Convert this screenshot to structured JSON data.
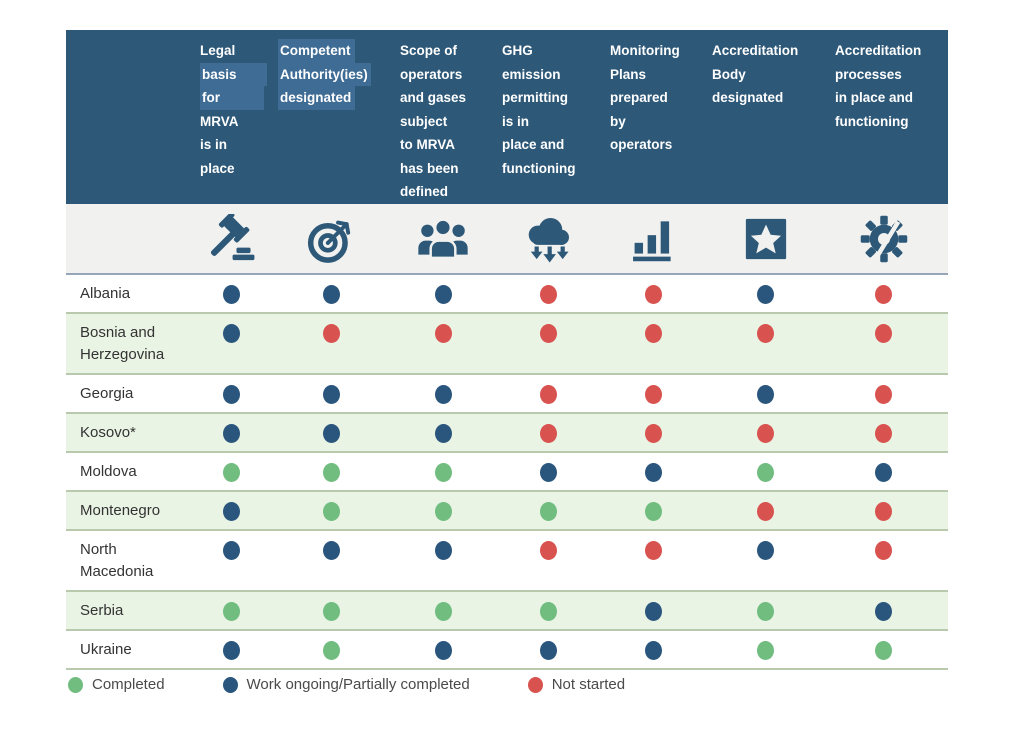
{
  "theme": {
    "header_bg": "#2d5878",
    "header_text": "#ffffff",
    "selection_highlight": "#3f6c95",
    "icon_band_bg": "#f1f1ef",
    "icon_color": "#2d5878",
    "row_alt_bg": "#eaf4e5",
    "row_separator": "#b9c9ad",
    "icon_band_separator": "#96a5b7",
    "country_text": "#333333",
    "legend_text": "#4a4a4a"
  },
  "chart_data": {
    "type": "table",
    "columns": [
      {
        "id": "legal-basis",
        "label": "Legal basis for MRVA is in place",
        "icon": "gavel-icon",
        "lines": [
          {
            "text": "Legal"
          },
          {
            "text": "basis",
            "highlight": true,
            "highlight_extend": 30
          },
          {
            "text": "for",
            "highlight": true,
            "highlight_extend": 44
          },
          {
            "text": "MRVA"
          },
          {
            "text": "is in"
          },
          {
            "text": "place"
          }
        ]
      },
      {
        "id": "competent-authority",
        "label": "Competent Authority(ies) designated",
        "icon": "target-dart-icon",
        "lines": [
          {
            "text": "Competent",
            "highlight": true,
            "highlight_extend": 4
          },
          {
            "text": "Authority(ies)",
            "highlight": true
          },
          {
            "text": "designated",
            "highlight": true,
            "highlight_extend": 4
          }
        ]
      },
      {
        "id": "scope-operators-gases",
        "label": "Scope of operators and gases subject to MRVA has been defined",
        "icon": "people-group-icon",
        "lines": [
          {
            "text": "Scope of"
          },
          {
            "text": "operators"
          },
          {
            "text": "and gases"
          },
          {
            "text": "subject"
          },
          {
            "text": "to MRVA"
          },
          {
            "text": "has been"
          },
          {
            "text": "defined"
          }
        ]
      },
      {
        "id": "ghg-permitting",
        "label": "GHG emission permitting is in place and functioning",
        "icon": "cloud-emissions-icon",
        "lines": [
          {
            "text": "GHG"
          },
          {
            "text": "emission"
          },
          {
            "text": "permitting"
          },
          {
            "text": "is in"
          },
          {
            "text": "place and"
          },
          {
            "text": "functioning"
          }
        ]
      },
      {
        "id": "monitoring-plans",
        "label": "Monitoring Plans prepared by operators",
        "icon": "bar-chart-icon",
        "lines": [
          {
            "text": "Monitoring"
          },
          {
            "text": "Plans"
          },
          {
            "text": "prepared"
          },
          {
            "text": "by"
          },
          {
            "text": "operators"
          }
        ]
      },
      {
        "id": "accreditation-body",
        "label": "Accreditation Body designated",
        "icon": "star-square-icon",
        "lines": [
          {
            "text": "Accreditation"
          },
          {
            "text": "Body"
          },
          {
            "text": "designated"
          }
        ]
      },
      {
        "id": "accreditation-processes",
        "label": "Accreditation processes in place and functioning",
        "icon": "gear-process-icon",
        "lines": [
          {
            "text": "Accreditation"
          },
          {
            "text": "processes"
          },
          {
            "text": "in place and"
          },
          {
            "text": "functioning"
          }
        ]
      }
    ],
    "rows": [
      {
        "country": "Albania",
        "statuses": [
          "ongoing",
          "ongoing",
          "ongoing",
          "not_started",
          "not_started",
          "ongoing",
          "not_started"
        ]
      },
      {
        "country": "Bosnia and Herzegovina",
        "statuses": [
          "ongoing",
          "not_started",
          "not_started",
          "not_started",
          "not_started",
          "not_started",
          "not_started"
        ]
      },
      {
        "country": "Georgia",
        "statuses": [
          "ongoing",
          "ongoing",
          "ongoing",
          "not_started",
          "not_started",
          "ongoing",
          "not_started"
        ]
      },
      {
        "country": "Kosovo*",
        "statuses": [
          "ongoing",
          "ongoing",
          "ongoing",
          "not_started",
          "not_started",
          "not_started",
          "not_started"
        ]
      },
      {
        "country": "Moldova",
        "statuses": [
          "completed",
          "completed",
          "completed",
          "ongoing",
          "ongoing",
          "completed",
          "ongoing"
        ]
      },
      {
        "country": "Montenegro",
        "statuses": [
          "ongoing",
          "completed",
          "completed",
          "completed",
          "completed",
          "not_started",
          "not_started"
        ]
      },
      {
        "country": "North Macedonia",
        "statuses": [
          "ongoing",
          "ongoing",
          "ongoing",
          "not_started",
          "not_started",
          "ongoing",
          "not_started"
        ]
      },
      {
        "country": "Serbia",
        "statuses": [
          "completed",
          "completed",
          "completed",
          "completed",
          "ongoing",
          "completed",
          "ongoing"
        ]
      },
      {
        "country": "Ukraine",
        "statuses": [
          "ongoing",
          "completed",
          "ongoing",
          "ongoing",
          "ongoing",
          "completed",
          "completed"
        ]
      }
    ],
    "status_colors": {
      "completed": "#70bd7f",
      "ongoing": "#2a567d",
      "not_started": "#d8534f"
    },
    "legend": [
      {
        "status": "completed",
        "label": "Completed"
      },
      {
        "status": "ongoing",
        "label": "Work ongoing/Partially completed"
      },
      {
        "status": "not_started",
        "label": "Not started"
      }
    ],
    "layout_hints": {
      "legend_position": "bottom-left",
      "row_striping": "white/light-green alternating"
    }
  }
}
